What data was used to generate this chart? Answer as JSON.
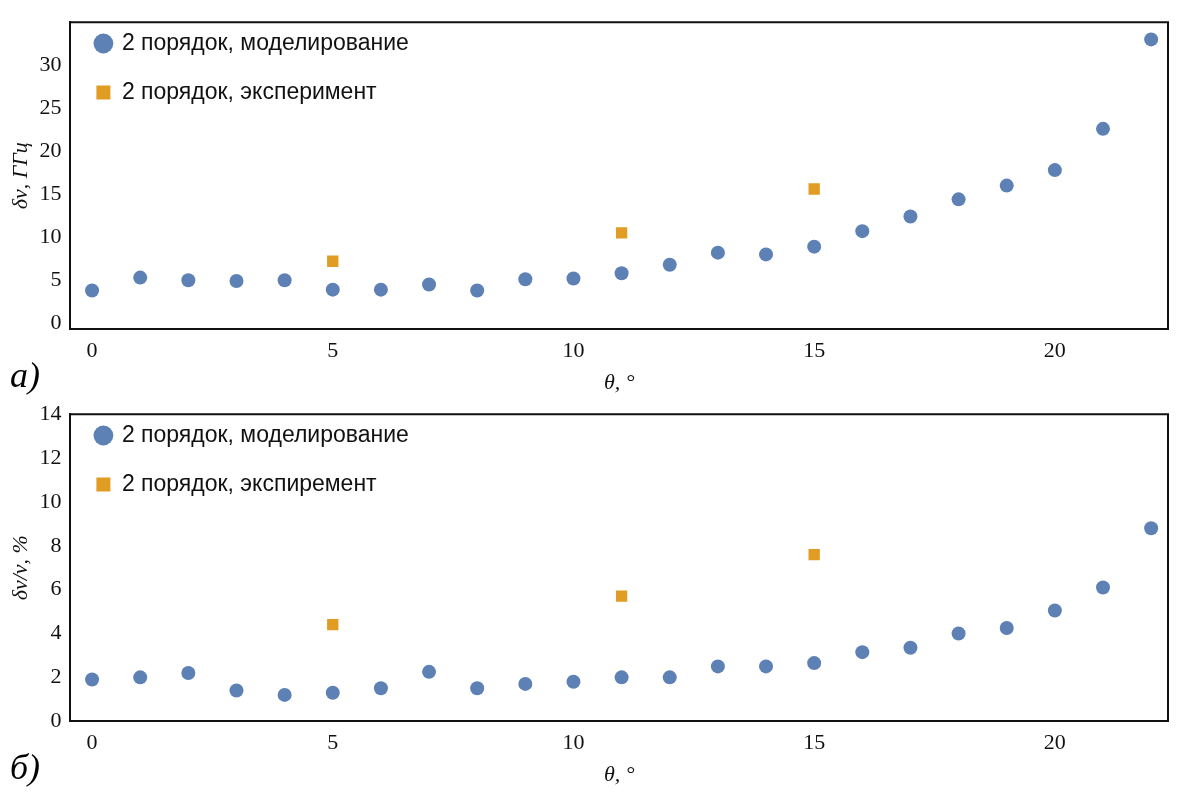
{
  "chart_data": [
    {
      "type": "scatter",
      "xlabel": "θ, °",
      "ylabel": "δν, ГГц",
      "annotations": [
        "а)"
      ],
      "x": [
        0,
        1,
        2,
        3,
        4,
        5,
        6,
        7,
        8,
        9,
        10,
        11,
        12,
        13,
        14,
        15,
        16,
        17,
        18,
        19,
        20,
        21,
        22
      ],
      "xlim": [
        -0.45,
        22.35
      ],
      "xticks": [
        0,
        5,
        10,
        15,
        20
      ],
      "ylim": [
        -0.7,
        35
      ],
      "yticks": [
        0,
        5,
        10,
        15,
        20,
        25,
        30
      ],
      "legend": "top left",
      "grid": false,
      "series": [
        {
          "name": "2 порядок, моделирование",
          "color": "#5e81b5",
          "marker": "circle",
          "values": [
            3.8,
            5.3,
            5.0,
            4.9,
            5.0,
            3.9,
            3.9,
            4.5,
            3.8,
            5.1,
            5.2,
            5.8,
            6.8,
            8.2,
            8.0,
            8.9,
            10.7,
            12.4,
            14.4,
            16.0,
            17.8,
            22.6,
            33.0
          ]
        },
        {
          "name": "2 порядок, эксперимент",
          "color": "#e19c24",
          "marker": "square",
          "x": [
            5,
            11,
            15
          ],
          "values": [
            7.2,
            10.5,
            15.6
          ]
        }
      ]
    },
    {
      "type": "scatter",
      "xlabel": "θ, °",
      "ylabel": "δν/ν, %",
      "annotations": [
        "б)"
      ],
      "x": [
        0,
        1,
        2,
        3,
        4,
        5,
        6,
        7,
        8,
        9,
        10,
        11,
        12,
        13,
        14,
        15,
        16,
        17,
        18,
        19,
        20,
        21,
        22
      ],
      "xlim": [
        -0.45,
        22.35
      ],
      "xticks": [
        0,
        5,
        10,
        15,
        20
      ],
      "ylim": [
        0,
        14
      ],
      "yticks": [
        0,
        2,
        4,
        6,
        8,
        10,
        12,
        14
      ],
      "legend": "top left",
      "grid": false,
      "series": [
        {
          "name": "2 порядок, моделирование",
          "color": "#5e81b5",
          "marker": "circle",
          "values": [
            1.9,
            2.0,
            2.2,
            1.4,
            1.2,
            1.3,
            1.5,
            2.25,
            1.5,
            1.7,
            1.8,
            2.0,
            2.0,
            2.5,
            2.5,
            2.65,
            3.15,
            3.35,
            4.0,
            4.25,
            5.05,
            6.1,
            8.8
          ]
        },
        {
          "name": "2 порядок, экспиремент",
          "color": "#e19c24",
          "marker": "square",
          "x": [
            5,
            11,
            15
          ],
          "values": [
            4.4,
            5.7,
            7.6
          ]
        }
      ]
    }
  ]
}
